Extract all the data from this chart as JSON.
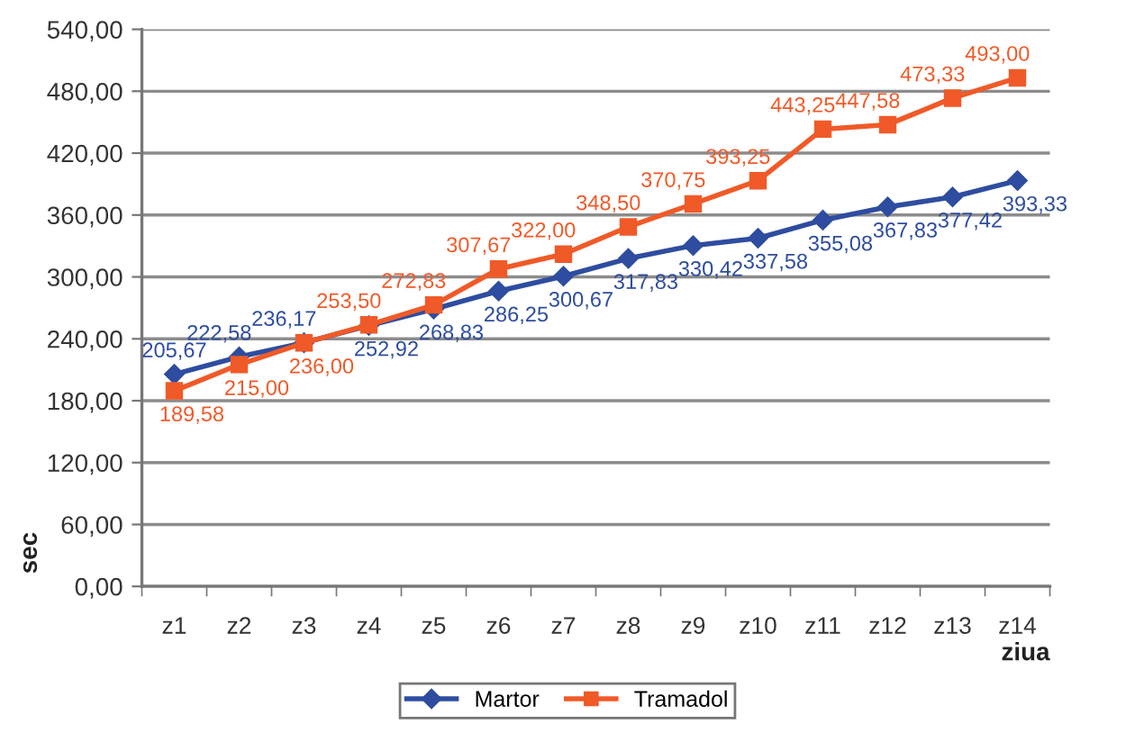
{
  "chart_data": {
    "type": "line",
    "categories": [
      "z1",
      "z2",
      "z3",
      "z4",
      "z5",
      "z6",
      "z7",
      "z8",
      "z9",
      "z10",
      "z11",
      "z12",
      "z13",
      "z14"
    ],
    "series": [
      {
        "name": "Martor",
        "color": "#2e4da0",
        "marker": "diamond",
        "values": [
          205.67,
          222.58,
          236.17,
          252.92,
          268.83,
          286.25,
          300.67,
          317.83,
          330.42,
          337.58,
          355.08,
          367.83,
          377.42,
          393.33
        ],
        "value_labels": [
          "205,67",
          "222,58",
          "236,17",
          "252,92",
          "268,83",
          "286,25",
          "300,67",
          "317,83",
          "330,42",
          "337,58",
          "355,08",
          "367,83",
          "377,42",
          "393,33"
        ]
      },
      {
        "name": "Tramadol",
        "color": "#f05a28",
        "marker": "square",
        "values": [
          189.58,
          215.0,
          236.0,
          253.5,
          272.83,
          307.67,
          322.0,
          348.5,
          370.75,
          393.25,
          443.25,
          447.58,
          473.33,
          493.0
        ],
        "value_labels": [
          "189,58",
          "215,00",
          "236,00",
          "253,50",
          "272,83",
          "307,67",
          "322,00",
          "348,50",
          "370,75",
          "393,25",
          "443,25",
          "447,58",
          "473,33",
          "493,00"
        ]
      }
    ],
    "xlabel": "ziua",
    "ylabel": "sec",
    "ylim": [
      0,
      540
    ],
    "yticks": [
      {
        "value": 0,
        "label": "0,00"
      },
      {
        "value": 60,
        "label": "60,00"
      },
      {
        "value": 120,
        "label": "120,00"
      },
      {
        "value": 180,
        "label": "180,00"
      },
      {
        "value": 240,
        "label": "240,00"
      },
      {
        "value": 300,
        "label": "300,00"
      },
      {
        "value": 360,
        "label": "360,00"
      },
      {
        "value": 420,
        "label": "420,00"
      },
      {
        "value": 480,
        "label": "480,00"
      },
      {
        "value": 540,
        "label": "540,00"
      }
    ],
    "grid": "y",
    "legend": "bottom",
    "line_style": "solid"
  }
}
